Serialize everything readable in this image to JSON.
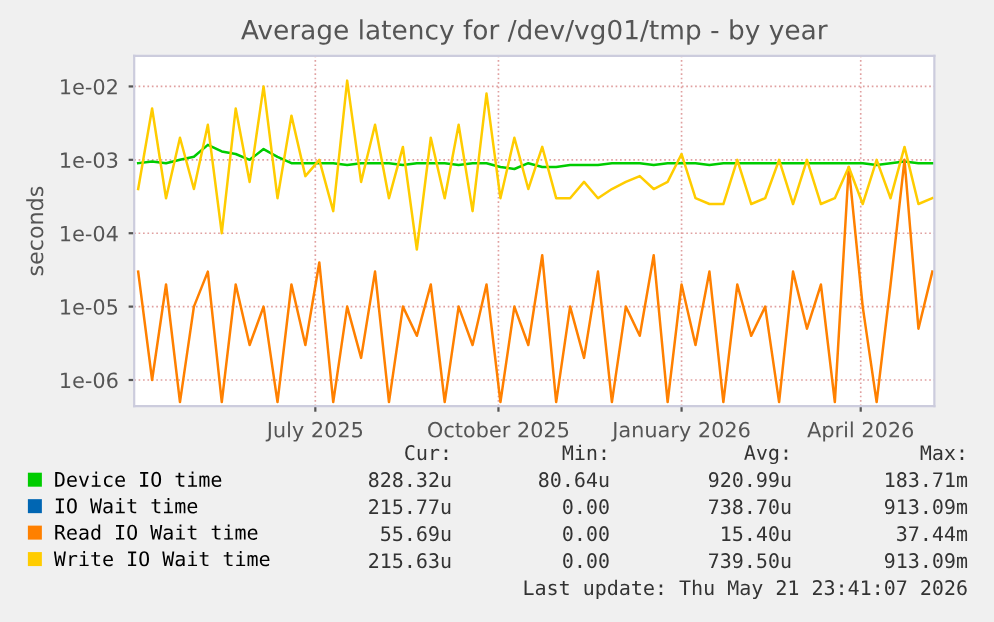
{
  "chart_data": {
    "type": "line",
    "title": "Average latency for /dev/vg01/tmp - by year",
    "ylabel": "seconds",
    "x": [
      "2025-04-03",
      "2025-04-10",
      "2025-04-17",
      "2025-04-24",
      "2025-05-01",
      "2025-05-08",
      "2025-05-15",
      "2025-05-22",
      "2025-05-29",
      "2025-06-05",
      "2025-06-12",
      "2025-06-19",
      "2025-06-26",
      "2025-07-03",
      "2025-07-10",
      "2025-07-17",
      "2025-07-24",
      "2025-07-31",
      "2025-08-07",
      "2025-08-14",
      "2025-08-21",
      "2025-08-28",
      "2025-09-04",
      "2025-09-11",
      "2025-09-18",
      "2025-09-25",
      "2025-10-02",
      "2025-10-09",
      "2025-10-16",
      "2025-10-23",
      "2025-10-30",
      "2025-11-06",
      "2025-11-13",
      "2025-11-20",
      "2025-11-27",
      "2025-12-04",
      "2025-12-11",
      "2025-12-18",
      "2025-12-25",
      "2026-01-01",
      "2026-01-08",
      "2026-01-15",
      "2026-01-22",
      "2026-01-29",
      "2026-02-05",
      "2026-02-12",
      "2026-02-19",
      "2026-02-26",
      "2026-03-05",
      "2026-03-12",
      "2026-03-19",
      "2026-03-26",
      "2026-04-02",
      "2026-04-09",
      "2026-04-16",
      "2026-04-23",
      "2026-04-30",
      "2026-05-07"
    ],
    "series": [
      {
        "name": "Device IO time",
        "color": "#00cc00",
        "values": [
          0.0009,
          0.00095,
          0.0009,
          0.001,
          0.0011,
          0.0016,
          0.0013,
          0.0012,
          0.001,
          0.0014,
          0.0011,
          0.0009,
          0.0009,
          0.0009,
          0.0009,
          0.00085,
          0.0009,
          0.0009,
          0.0009,
          0.00085,
          0.0009,
          0.0009,
          0.0009,
          0.00085,
          0.0009,
          0.0009,
          0.0008,
          0.00075,
          0.0009,
          0.0008,
          0.0008,
          0.00085,
          0.00085,
          0.00085,
          0.0009,
          0.0009,
          0.0009,
          0.00085,
          0.0009,
          0.0009,
          0.0009,
          0.00085,
          0.0009,
          0.0009,
          0.0009,
          0.0009,
          0.0009,
          0.0009,
          0.0009,
          0.0009,
          0.0009,
          0.0009,
          0.0009,
          0.00085,
          0.0009,
          0.00095,
          0.0009,
          0.0009
        ]
      },
      {
        "name": "IO Wait time",
        "color": "#0066b3",
        "values": [
          null,
          null,
          null,
          null,
          null,
          null,
          null,
          null,
          null,
          null,
          null,
          null,
          null,
          null,
          null,
          null,
          null,
          null,
          null,
          null,
          null,
          null,
          null,
          null,
          null,
          null,
          null,
          null,
          null,
          null,
          null,
          null,
          null,
          null,
          null,
          null,
          null,
          null,
          null,
          null,
          null,
          null,
          null,
          null,
          null,
          null,
          null,
          null,
          null,
          null,
          null,
          null,
          null,
          null,
          null,
          null,
          null,
          null
        ]
      },
      {
        "name": "Read IO Wait time",
        "color": "#ff8000",
        "values": [
          3e-05,
          1e-06,
          2e-05,
          5e-07,
          1e-05,
          3e-05,
          5e-07,
          2e-05,
          3e-06,
          1e-05,
          5e-07,
          2e-05,
          3e-06,
          4e-05,
          5e-07,
          1e-05,
          2e-06,
          3e-05,
          5e-07,
          1e-05,
          4e-06,
          2e-05,
          5e-07,
          1e-05,
          3e-06,
          2e-05,
          5e-07,
          1e-05,
          3e-06,
          5e-05,
          5e-07,
          1e-05,
          2e-06,
          3e-05,
          5e-07,
          1e-05,
          4e-06,
          5e-05,
          5e-07,
          2e-05,
          3e-06,
          3e-05,
          5e-07,
          2e-05,
          4e-06,
          1e-05,
          5e-07,
          3e-05,
          5e-06,
          2e-05,
          5e-07,
          0.0008,
          1e-05,
          5e-07,
          2e-05,
          0.001,
          5e-06,
          3e-05
        ]
      },
      {
        "name": "Write IO Wait time",
        "color": "#ffcc00",
        "values": [
          0.0004,
          0.005,
          0.0003,
          0.002,
          0.0004,
          0.003,
          0.0001,
          0.005,
          0.0005,
          0.01,
          0.0003,
          0.004,
          0.0006,
          0.001,
          0.0002,
          0.012,
          0.0005,
          0.003,
          0.0003,
          0.0015,
          6e-05,
          0.002,
          0.0003,
          0.003,
          0.0002,
          0.008,
          0.0003,
          0.002,
          0.0004,
          0.0015,
          0.0003,
          0.0003,
          0.0005,
          0.0003,
          0.0004,
          0.0005,
          0.0006,
          0.0004,
          0.0005,
          0.0012,
          0.0003,
          0.00025,
          0.00025,
          0.001,
          0.00025,
          0.0003,
          0.001,
          0.00025,
          0.001,
          0.00025,
          0.0003,
          0.0008,
          0.00025,
          0.001,
          0.0003,
          0.0015,
          0.00025,
          0.0003
        ]
      }
    ],
    "log": "y",
    "xlim": [
      "2025-04-01",
      "2026-05-08"
    ],
    "xticks": [
      {
        "value": "2025-07-01",
        "label": "July 2025"
      },
      {
        "value": "2025-10-01",
        "label": "October 2025"
      },
      {
        "value": "2026-01-01",
        "label": "January 2026"
      },
      {
        "value": "2026-04-01",
        "label": "April 2026"
      }
    ],
    "ylim": [
      4.4e-07,
      0.026
    ],
    "yticks": [
      {
        "value": 1e-06,
        "label": "1e-06"
      },
      {
        "value": 1e-05,
        "label": "1e-05"
      },
      {
        "value": 0.0001,
        "label": "1e-04"
      },
      {
        "value": 0.001,
        "label": "1e-03"
      },
      {
        "value": 0.01,
        "label": "1e-02"
      }
    ],
    "grid": true,
    "legend": "bottom",
    "line_style": "solid",
    "annotations": [
      "Cur:",
      "Min:",
      "Avg:",
      "Max:",
      "828.32u",
      "80.64u",
      "920.99u",
      "183.71m",
      "215.77u",
      "0.00",
      "738.70u",
      "913.09m",
      "55.69u",
      "0.00",
      "15.40u",
      "37.44m",
      "215.63u",
      "0.00",
      "739.50u",
      "913.09m",
      "Last update: Thu May 21 23:41:07 2026"
    ]
  }
}
